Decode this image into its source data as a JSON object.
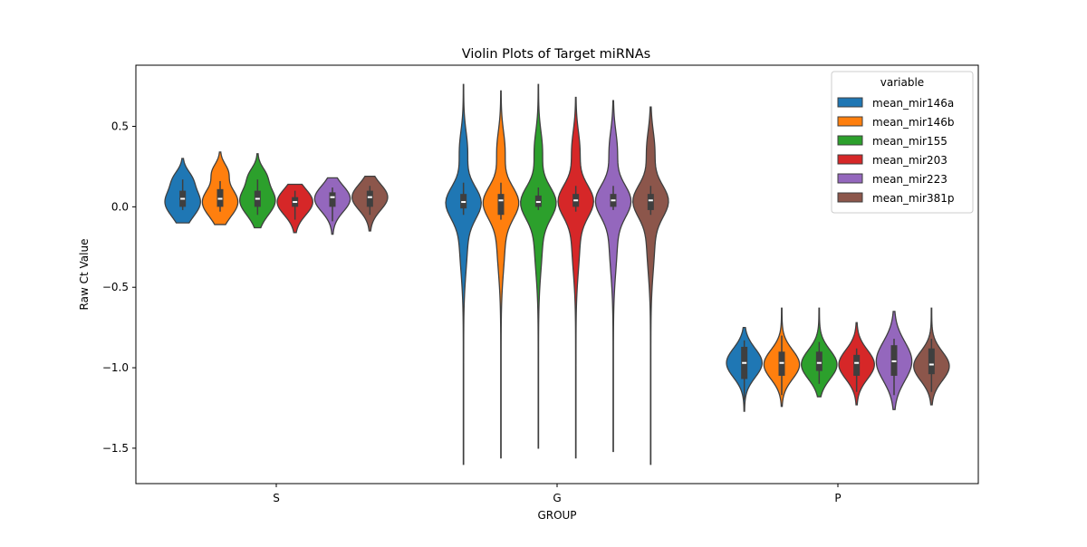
{
  "chart_data": {
    "type": "violin",
    "title": "Violin Plots of Target miRNAs",
    "xlabel": "GROUP",
    "ylabel": "Raw Ct Value",
    "categories": [
      "S",
      "G",
      "P"
    ],
    "ylim": [
      -1.72,
      0.88
    ],
    "yticks": [
      -1.5,
      -1.0,
      -0.5,
      0.0,
      0.5
    ],
    "ytick_labels": [
      "−1.5",
      "−1.0",
      "−0.5",
      "0.0",
      "0.5"
    ],
    "grid": false,
    "legend": {
      "title": "variable",
      "position": "top-right"
    },
    "series": [
      {
        "name": "mean_mir146a",
        "color": "#1f77b4",
        "stats": [
          {
            "min": -0.1,
            "max": 0.3,
            "q1": 0.0,
            "median": 0.05,
            "q3": 0.1,
            "wlo": -0.02,
            "whi": 0.17,
            "modes": [
              [
                0.18,
                0.22,
                0.05
              ],
              [
                0.03,
                0.7,
                0.09
              ]
            ]
          },
          {
            "min": -1.6,
            "max": 0.76,
            "q1": -0.01,
            "median": 0.03,
            "q3": 0.08,
            "wlo": -0.05,
            "whi": 0.15,
            "modes": [
              [
                0.03,
                1.0,
                0.1
              ],
              [
                -0.2,
                0.25,
                0.2
              ],
              [
                0.35,
                0.25,
                0.12
              ]
            ]
          },
          {
            "min": -1.27,
            "max": -0.75,
            "q1": -1.07,
            "median": -0.97,
            "q3": -0.87,
            "wlo": -1.2,
            "whi": -0.83,
            "modes": [
              [
                -0.97,
                0.9,
                0.09
              ]
            ]
          }
        ]
      },
      {
        "name": "mean_mir146b",
        "color": "#ff7f0e",
        "stats": [
          {
            "min": -0.11,
            "max": 0.34,
            "q1": 0.0,
            "median": 0.05,
            "q3": 0.11,
            "wlo": -0.03,
            "whi": 0.16,
            "modes": [
              [
                0.22,
                0.25,
                0.05
              ],
              [
                0.03,
                0.7,
                0.09
              ]
            ]
          },
          {
            "min": -1.56,
            "max": 0.72,
            "q1": -0.05,
            "median": 0.04,
            "q3": 0.08,
            "wlo": -0.08,
            "whi": 0.15,
            "modes": [
              [
                0.03,
                1.0,
                0.1
              ],
              [
                -0.2,
                0.25,
                0.2
              ],
              [
                0.35,
                0.25,
                0.12
              ]
            ]
          },
          {
            "min": -1.24,
            "max": -0.63,
            "q1": -1.05,
            "median": -0.97,
            "q3": -0.9,
            "wlo": -1.17,
            "whi": -0.8,
            "modes": [
              [
                -0.98,
                0.9,
                0.09
              ]
            ]
          }
        ]
      },
      {
        "name": "mean_mir155",
        "color": "#2ca02c",
        "stats": [
          {
            "min": -0.13,
            "max": 0.33,
            "q1": 0.0,
            "median": 0.05,
            "q3": 0.1,
            "wlo": -0.05,
            "whi": 0.17,
            "modes": [
              [
                0.2,
                0.22,
                0.05
              ],
              [
                0.04,
                0.7,
                0.09
              ]
            ]
          },
          {
            "min": -1.5,
            "max": 0.76,
            "q1": 0.0,
            "median": 0.03,
            "q3": 0.07,
            "wlo": -0.02,
            "whi": 0.12,
            "modes": [
              [
                0.03,
                1.0,
                0.1
              ],
              [
                -0.2,
                0.25,
                0.2
              ],
              [
                0.35,
                0.25,
                0.12
              ]
            ]
          },
          {
            "min": -1.18,
            "max": -0.63,
            "q1": -1.02,
            "median": -0.97,
            "q3": -0.9,
            "wlo": -1.1,
            "whi": -0.84,
            "modes": [
              [
                -0.98,
                0.9,
                0.09
              ]
            ]
          }
        ]
      },
      {
        "name": "mean_mir203",
        "color": "#d62728",
        "stats": [
          {
            "min": -0.16,
            "max": 0.14,
            "q1": 0.0,
            "median": 0.03,
            "q3": 0.06,
            "wlo": -0.08,
            "whi": 0.1,
            "modes": [
              [
                0.03,
                0.85,
                0.08
              ]
            ]
          },
          {
            "min": -1.56,
            "max": 0.68,
            "q1": 0.0,
            "median": 0.04,
            "q3": 0.08,
            "wlo": -0.03,
            "whi": 0.13,
            "modes": [
              [
                0.04,
                1.0,
                0.1
              ],
              [
                -0.2,
                0.25,
                0.2
              ],
              [
                0.35,
                0.25,
                0.12
              ]
            ]
          },
          {
            "min": -1.23,
            "max": -0.72,
            "q1": -1.05,
            "median": -0.97,
            "q3": -0.92,
            "wlo": -1.15,
            "whi": -0.88,
            "modes": [
              [
                -0.98,
                0.9,
                0.09
              ]
            ]
          }
        ]
      },
      {
        "name": "mean_mir223",
        "color": "#9467bd",
        "stats": [
          {
            "min": -0.17,
            "max": 0.18,
            "q1": 0.0,
            "median": 0.06,
            "q3": 0.09,
            "wlo": -0.09,
            "whi": 0.12,
            "modes": [
              [
                0.05,
                0.85,
                0.08
              ]
            ]
          },
          {
            "min": -1.52,
            "max": 0.66,
            "q1": 0.0,
            "median": 0.04,
            "q3": 0.08,
            "wlo": -0.02,
            "whi": 0.13,
            "modes": [
              [
                0.04,
                1.0,
                0.1
              ],
              [
                -0.2,
                0.25,
                0.2
              ],
              [
                0.35,
                0.25,
                0.12
              ]
            ]
          },
          {
            "min": -1.26,
            "max": -0.65,
            "q1": -1.05,
            "median": -0.96,
            "q3": -0.86,
            "wlo": -1.17,
            "whi": -0.82,
            "modes": [
              [
                -0.96,
                0.9,
                0.12
              ]
            ]
          }
        ]
      },
      {
        "name": "mean_mir381p",
        "color": "#8c564b",
        "stats": [
          {
            "min": -0.15,
            "max": 0.19,
            "q1": 0.0,
            "median": 0.06,
            "q3": 0.1,
            "wlo": -0.05,
            "whi": 0.13,
            "modes": [
              [
                0.06,
                0.85,
                0.08
              ]
            ]
          },
          {
            "min": -1.6,
            "max": 0.62,
            "q1": -0.02,
            "median": 0.04,
            "q3": 0.08,
            "wlo": -0.05,
            "whi": 0.13,
            "modes": [
              [
                0.04,
                1.0,
                0.1
              ],
              [
                -0.2,
                0.25,
                0.2
              ],
              [
                0.35,
                0.25,
                0.12
              ]
            ]
          },
          {
            "min": -1.23,
            "max": -0.63,
            "q1": -1.04,
            "median": -0.98,
            "q3": -0.88,
            "wlo": -1.15,
            "whi": -0.82,
            "modes": [
              [
                -0.99,
                0.9,
                0.09
              ]
            ]
          }
        ]
      }
    ]
  }
}
